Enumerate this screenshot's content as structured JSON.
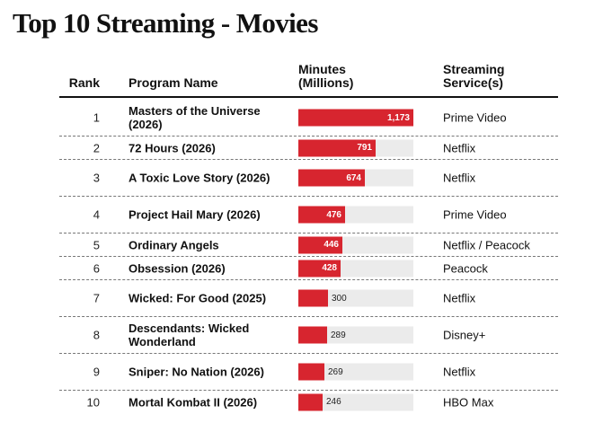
{
  "title": "Top 10 Streaming - Movies",
  "headers": {
    "rank": "Rank",
    "program": "Program Name",
    "minutes_line1": "Minutes",
    "minutes_line2": "(Millions)",
    "service_line1": "Streaming",
    "service_line2": "Service(s)"
  },
  "colors": {
    "bar": "#d7252f",
    "track": "#ebebeb"
  },
  "chart_data": {
    "type": "bar",
    "title": "Top 10 Streaming - Movies",
    "xlabel": "",
    "ylabel": "Minutes (Millions)",
    "categories": [
      "Masters of the Universe (2026)",
      "72 Hours (2026)",
      "A Toxic Love Story (2026)",
      "Project Hail Mary (2026)",
      "Ordinary Angels",
      "Obsession (2026)",
      "Wicked: For Good (2025)",
      "Descendants: Wicked Wonderland",
      "Sniper: No Nation (2026)",
      "Mortal Kombat II (2026)"
    ],
    "values": [
      1173,
      791,
      674,
      476,
      446,
      428,
      300,
      289,
      269,
      246
    ],
    "ylim": [
      0,
      1173
    ]
  },
  "rows": [
    {
      "rank": "1",
      "name": "Masters of the Universe (2026)",
      "label": "1,173",
      "service": "Prime Video"
    },
    {
      "rank": "2",
      "name": "72 Hours (2026)",
      "label": "791",
      "service": "Netflix"
    },
    {
      "rank": "3",
      "name": "A Toxic Love Story (2026)",
      "label": "674",
      "service": "Netflix"
    },
    {
      "rank": "4",
      "name": "Project Hail Mary (2026)",
      "label": "476",
      "service": "Prime Video"
    },
    {
      "rank": "5",
      "name": "Ordinary Angels",
      "label": "446",
      "service": "Netflix / Peacock"
    },
    {
      "rank": "6",
      "name": "Obsession (2026)",
      "label": "428",
      "service": "Peacock"
    },
    {
      "rank": "7",
      "name": "Wicked: For Good (2025)",
      "label": "300",
      "service": "Netflix"
    },
    {
      "rank": "8",
      "name": "Descendants: Wicked Wonderland",
      "label": "289",
      "service": "Disney+"
    },
    {
      "rank": "9",
      "name": "Sniper: No Nation (2026)",
      "label": "269",
      "service": "Netflix"
    },
    {
      "rank": "10",
      "name": "Mortal Kombat II (2026)",
      "label": "246",
      "service": "HBO Max"
    }
  ]
}
